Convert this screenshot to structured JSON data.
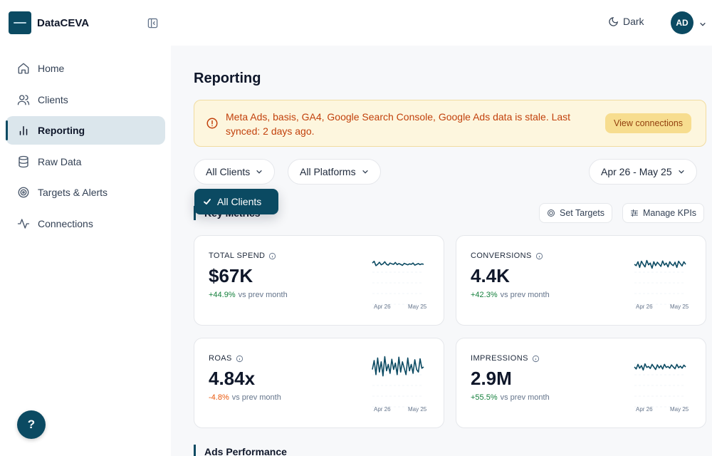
{
  "app": {
    "name": "DataCEVA"
  },
  "sidebar": {
    "items": [
      {
        "label": "Home",
        "icon": "home-icon",
        "active": false
      },
      {
        "label": "Clients",
        "icon": "users-icon",
        "active": false
      },
      {
        "label": "Reporting",
        "icon": "bar-chart-icon",
        "active": true
      },
      {
        "label": "Raw Data",
        "icon": "database-icon",
        "active": false
      },
      {
        "label": "Targets & Alerts",
        "icon": "target-icon",
        "active": false
      },
      {
        "label": "Connections",
        "icon": "activity-icon",
        "active": false
      }
    ],
    "help_label": "?"
  },
  "topbar": {
    "theme_label": "Dark",
    "avatar_initials": "AD"
  },
  "page": {
    "title": "Reporting"
  },
  "alert": {
    "sources": "Meta Ads, basis, GA4, Google Search Console, Google Ads",
    "message": " data is stale. Last synced: 2 days ago.",
    "button_label": "View connections"
  },
  "filters": {
    "client_label": "All Clients",
    "platform_label": "All Platforms",
    "date_range_label": "Apr 26 - May 25",
    "client_dropdown_selected": "All Clients"
  },
  "key_metrics": {
    "title": "Key Metrics",
    "set_targets_label": "Set Targets",
    "manage_kpis_label": "Manage KPIs",
    "cards": [
      {
        "label": "TOTAL SPEND",
        "value": "$67K",
        "delta": "+44.9%",
        "delta_dir": "up",
        "compare": "vs prev month",
        "axis_start": "Apr 26",
        "axis_end": "May 25",
        "spark": [
          0.55,
          0.62,
          0.45,
          0.5,
          0.58,
          0.48,
          0.52,
          0.6,
          0.5,
          0.47,
          0.55,
          0.52,
          0.5,
          0.57,
          0.49,
          0.53,
          0.5,
          0.46,
          0.54,
          0.51,
          0.48,
          0.52,
          0.5,
          0.55,
          0.47,
          0.5,
          0.53,
          0.49,
          0.52,
          0.5
        ]
      },
      {
        "label": "CONVERSIONS",
        "value": "4.4K",
        "delta": "+42.3%",
        "delta_dir": "up",
        "compare": "vs prev month",
        "axis_start": "Apr 26",
        "axis_end": "May 25",
        "spark": [
          0.5,
          0.45,
          0.6,
          0.38,
          0.62,
          0.5,
          0.4,
          0.65,
          0.48,
          0.55,
          0.35,
          0.6,
          0.45,
          0.58,
          0.5,
          0.42,
          0.63,
          0.47,
          0.55,
          0.4,
          0.6,
          0.5,
          0.45,
          0.58,
          0.38,
          0.62,
          0.52,
          0.44,
          0.6,
          0.5
        ]
      },
      {
        "label": "ROAS",
        "value": "4.84x",
        "delta": "-4.8%",
        "delta_dir": "down",
        "compare": "vs prev month",
        "axis_start": "Apr 26",
        "axis_end": "May 25",
        "spark": [
          0.4,
          0.75,
          0.2,
          0.85,
          0.3,
          0.7,
          0.15,
          0.9,
          0.35,
          0.6,
          0.25,
          0.8,
          0.4,
          0.65,
          0.2,
          0.88,
          0.3,
          0.7,
          0.45,
          0.2,
          0.85,
          0.35,
          0.6,
          0.25,
          0.78,
          0.4,
          0.3,
          0.82,
          0.45,
          0.5
        ]
      },
      {
        "label": "IMPRESSIONS",
        "value": "2.9M",
        "delta": "+55.5%",
        "delta_dir": "up",
        "compare": "vs prev month",
        "axis_start": "Apr 26",
        "axis_end": "May 25",
        "spark": [
          0.5,
          0.42,
          0.6,
          0.45,
          0.55,
          0.38,
          0.62,
          0.48,
          0.52,
          0.44,
          0.6,
          0.5,
          0.4,
          0.58,
          0.46,
          0.55,
          0.42,
          0.6,
          0.48,
          0.52,
          0.45,
          0.58,
          0.5,
          0.43,
          0.6,
          0.47,
          0.53,
          0.45,
          0.57,
          0.5
        ]
      }
    ]
  },
  "ads_performance": {
    "title": "Ads Performance"
  },
  "colors": {
    "accent": "#0b4a62",
    "positive": "#15803d",
    "negative": "#ea580c",
    "warning_text": "#c2410c"
  }
}
